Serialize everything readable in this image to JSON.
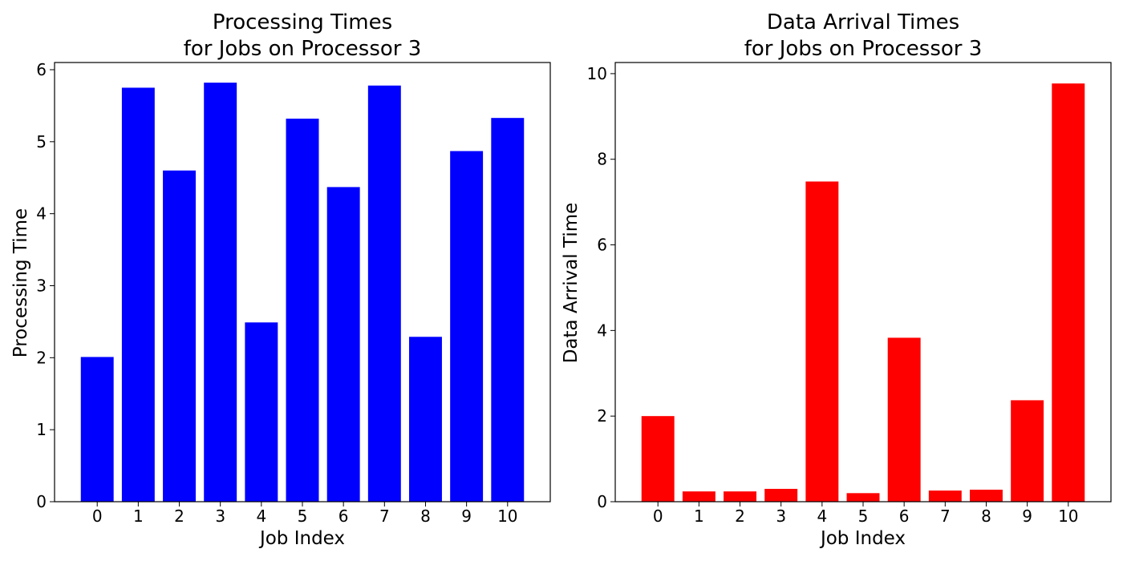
{
  "chart_data": [
    {
      "type": "bar",
      "title": [
        "Processing Times",
        "for Jobs on Processor 3"
      ],
      "xlabel": "Job Index",
      "ylabel": "Processing Time",
      "categories": [
        "0",
        "1",
        "2",
        "3",
        "4",
        "5",
        "6",
        "7",
        "8",
        "9",
        "10"
      ],
      "values": [
        2.01,
        5.75,
        4.6,
        5.82,
        2.49,
        5.32,
        4.37,
        5.78,
        2.29,
        4.87,
        5.33
      ],
      "ylim": [
        0,
        6.1
      ],
      "yticks": [
        0,
        1,
        2,
        3,
        4,
        5,
        6
      ],
      "bar_color": "#0000ff",
      "grid": false
    },
    {
      "type": "bar",
      "title": [
        "Data Arrival Times",
        "for Jobs on Processor 3"
      ],
      "xlabel": "Job Index",
      "ylabel": "Data Arrival Time",
      "categories": [
        "0",
        "1",
        "2",
        "3",
        "4",
        "5",
        "6",
        "7",
        "8",
        "9",
        "10"
      ],
      "values": [
        2.0,
        0.24,
        0.24,
        0.3,
        7.48,
        0.2,
        3.83,
        0.26,
        0.28,
        2.37,
        9.77
      ],
      "ylim": [
        0,
        10.26
      ],
      "yticks": [
        0,
        2,
        4,
        6,
        8,
        10
      ],
      "bar_color": "#ff0000",
      "grid": false
    }
  ]
}
